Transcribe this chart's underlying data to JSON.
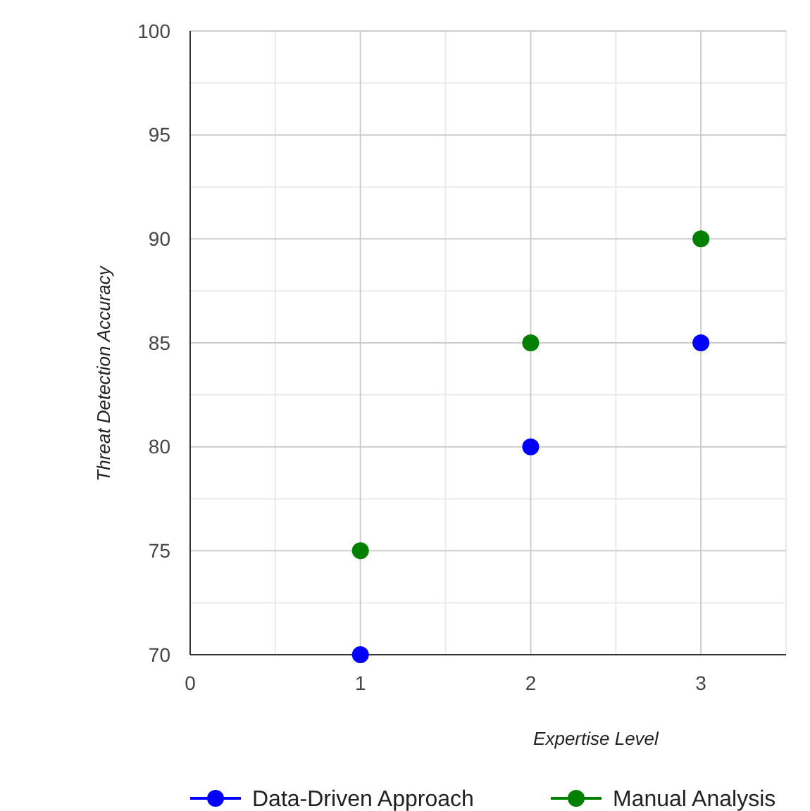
{
  "chart_data": {
    "type": "scatter",
    "xlabel": "Expertise Level",
    "ylabel": "Threat Detection Accuracy",
    "xlim": [
      0,
      3.5
    ],
    "xticks": [
      0,
      1,
      2,
      3
    ],
    "ylim": [
      70,
      100
    ],
    "yticks": [
      70,
      75,
      80,
      85,
      90,
      95,
      100
    ],
    "grid": true,
    "legend": "bottom",
    "marker": "circle",
    "series": [
      {
        "name": "Data-Driven Approach",
        "color": "#0000ff",
        "x": [
          1,
          2,
          3
        ],
        "values": [
          70,
          80,
          85
        ]
      },
      {
        "name": "Manual Analysis",
        "color": "#008000",
        "x": [
          1,
          2,
          3
        ],
        "values": [
          75,
          85,
          90
        ]
      }
    ]
  }
}
